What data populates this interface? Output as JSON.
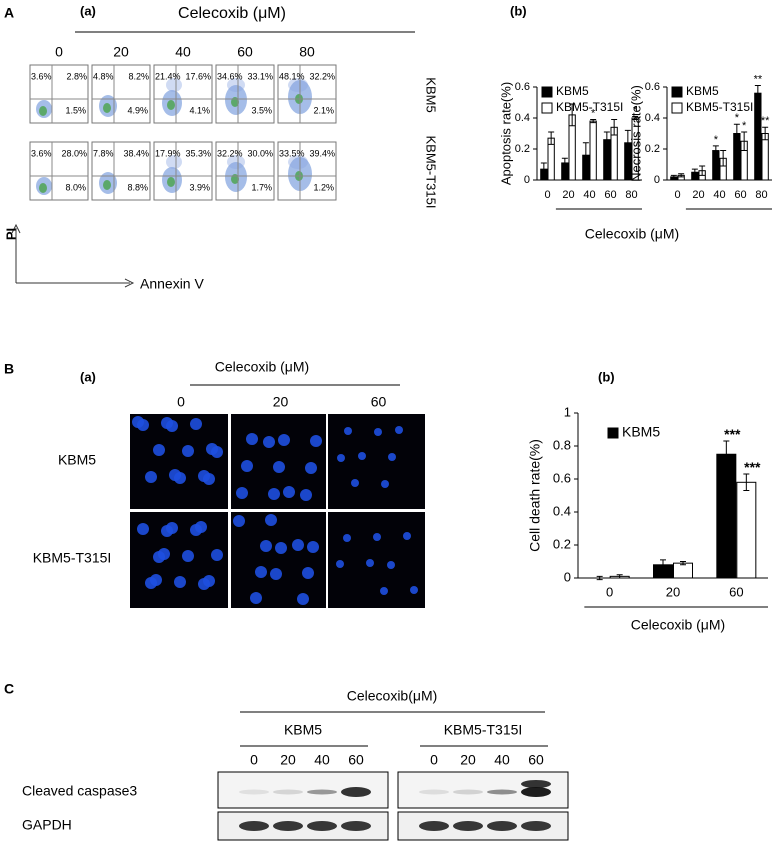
{
  "A": {
    "letter": "A",
    "a": {
      "label": "(a)",
      "title": "Celecoxib (μM)",
      "columns": [
        "0",
        "20",
        "40",
        "60",
        "80"
      ],
      "rows": [
        {
          "name": "KBM5",
          "quadrants": [
            [
              "3.6%",
              "2.8%",
              "1.5%"
            ],
            [
              "4.8%",
              "8.2%",
              "4.9%"
            ],
            [
              "21.4%",
              "17.6%",
              "4.1%"
            ],
            [
              "34.6%",
              "33.1%",
              "3.5%"
            ],
            [
              "48.1%",
              "32.2%",
              "2.1%"
            ]
          ]
        },
        {
          "name": "KBM5-T315I",
          "quadrants": [
            [
              "3.6%",
              "28.0%",
              "8.0%"
            ],
            [
              "7.8%",
              "38.4%",
              "8.8%"
            ],
            [
              "17.9%",
              "35.3%",
              "3.9%"
            ],
            [
              "32.2%",
              "30.0%",
              "1.7%"
            ],
            [
              "33.5%",
              "39.4%",
              "1.2%"
            ]
          ]
        }
      ],
      "y_axis": "PI",
      "x_axis": "Annexin V"
    },
    "b": {
      "label": "(b)",
      "xlabel": "Celecoxib (μM)"
    }
  },
  "B": {
    "letter": "B",
    "a": {
      "label": "(a)",
      "title": "Celecoxib (μM)",
      "columns": [
        "0",
        "20",
        "60"
      ],
      "rows": [
        "KBM5",
        "KBM5-T315I"
      ]
    },
    "b": {
      "label": "(b)"
    }
  },
  "C": {
    "letter": "C",
    "title": "Celecoxib(μM)",
    "groups": [
      {
        "name": "KBM5",
        "lanes": [
          "0",
          "20",
          "40",
          "60"
        ]
      },
      {
        "name": "KBM5-T315I",
        "lanes": [
          "0",
          "20",
          "40",
          "60"
        ]
      }
    ],
    "rows": [
      "Cleaved caspase3",
      "GAPDH"
    ]
  },
  "chart_data": [
    {
      "type": "bar",
      "ylabel": "Apoptosis rate(%)",
      "categories": [
        0,
        20,
        40,
        60,
        80
      ],
      "series": [
        {
          "name": "KBM5",
          "color": "#000000",
          "values": [
            0.07,
            0.11,
            0.16,
            0.26,
            0.24
          ],
          "errors": [
            0.04,
            0.03,
            0.08,
            0.05,
            0.08
          ],
          "annotations": [
            null,
            null,
            null,
            null,
            null
          ]
        },
        {
          "name": "KBM5-T315I",
          "color": "#ffffff",
          "values": [
            0.27,
            0.42,
            0.38,
            0.34,
            0.4
          ],
          "errors": [
            0.04,
            0.07,
            0.01,
            0.05,
            0.01
          ],
          "annotations": [
            null,
            null,
            "*",
            null,
            "*"
          ]
        }
      ],
      "edgecolor": "#000000",
      "ylim": [
        0,
        0.6
      ],
      "yticks": [
        0,
        0.2,
        0.4,
        0.6
      ],
      "legend": "top-left"
    },
    {
      "type": "bar",
      "ylabel": "Necrosis rate(%)",
      "categories": [
        0,
        20,
        40,
        60,
        80
      ],
      "series": [
        {
          "name": "KBM5",
          "color": "#000000",
          "values": [
            0.02,
            0.05,
            0.19,
            0.3,
            0.56
          ],
          "errors": [
            0.01,
            0.02,
            0.03,
            0.06,
            0.05
          ],
          "annotations": [
            null,
            null,
            "*",
            "*",
            "**"
          ]
        },
        {
          "name": "KBM5-T315I",
          "color": "#ffffff",
          "values": [
            0.03,
            0.06,
            0.14,
            0.25,
            0.3
          ],
          "errors": [
            0.01,
            0.03,
            0.05,
            0.06,
            0.04
          ],
          "annotations": [
            null,
            null,
            null,
            "*",
            "**"
          ]
        }
      ],
      "edgecolor": "#000000",
      "ylim": [
        0,
        0.6
      ],
      "yticks": [
        0,
        0.2,
        0.4,
        0.6
      ],
      "legend": "top-left"
    },
    {
      "type": "bar",
      "ylabel": "Cell death rate(%)",
      "xlabel": "Celecoxib (μM)",
      "categories": [
        0,
        20,
        60
      ],
      "series": [
        {
          "name": "KBM5",
          "color": "#000000",
          "values": [
            0.0,
            0.08,
            0.75
          ],
          "errors": [
            0.01,
            0.03,
            0.08
          ],
          "annotations": [
            null,
            null,
            "***"
          ]
        },
        {
          "color": "#ffffff",
          "values": [
            0.01,
            0.09,
            0.58
          ],
          "errors": [
            0.01,
            0.01,
            0.05
          ],
          "annotations": [
            null,
            null,
            "***"
          ]
        }
      ],
      "edgecolor": "#000000",
      "ylim": [
        0,
        1
      ],
      "yticks": [
        0,
        0.2,
        0.4,
        0.6,
        0.8,
        1
      ],
      "legend": "top-left"
    }
  ]
}
